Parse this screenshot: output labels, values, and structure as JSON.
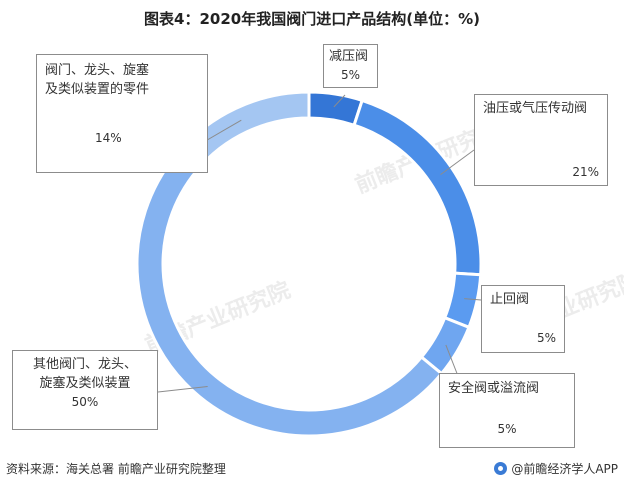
{
  "chart_data": {
    "type": "pie",
    "title": "图表4：2020年我国阀门进口产品结构(单位：%)",
    "categories": [
      "减压阀",
      "油压或气压传动阀",
      "止回阀",
      "安全阀或溢流阀",
      "其他阀门、龙头、旋塞及类似装置",
      "阀门、龙头、旋塞及类似装置的零件"
    ],
    "values": [
      5,
      21,
      5,
      5,
      50,
      14
    ],
    "colors": [
      "#3476d6",
      "#4b8ee8",
      "#5b9bf0",
      "#6fa6f0",
      "#84b2f0",
      "#a4c6f2"
    ],
    "labels": [
      {
        "name": "减压阀",
        "value": "5%"
      },
      {
        "name": "油压或气压传动阀",
        "value": "21%"
      },
      {
        "name": "止回阀",
        "value": "5%"
      },
      {
        "name": "安全阀或溢流阀",
        "value": "5%"
      },
      {
        "name": "其他阀门、龙头、\n旋塞及类似装置",
        "value": "50%"
      },
      {
        "name": "阀门、龙头、旋塞\n及类似装置的零件",
        "value": "14%"
      }
    ]
  },
  "watermark": "前瞻产业研究院",
  "footer": {
    "source": "资料来源：海关总署  前瞻产业研究院整理",
    "brand": "@前瞻经济学人APP"
  }
}
